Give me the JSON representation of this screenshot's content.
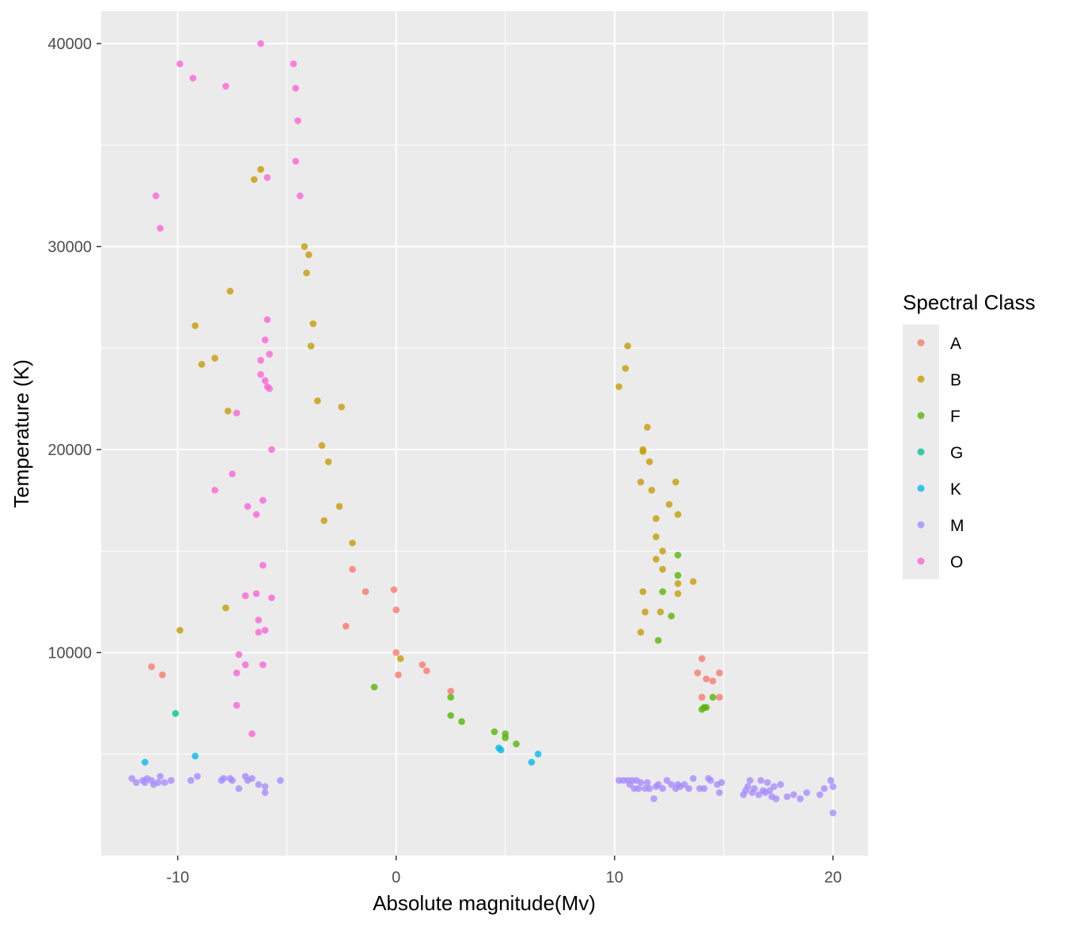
{
  "chart_data": {
    "type": "scatter",
    "xlabel": "Absolute magnitude(Mv)",
    "ylabel": "Temperature (K)",
    "xlim": [
      -13.5,
      21.6
    ],
    "ylim": [
      0,
      41600
    ],
    "x_ticks": [
      -10,
      0,
      10,
      20
    ],
    "x_tick_labels": [
      "-10",
      "0",
      "10",
      "20"
    ],
    "y_ticks": [
      10000,
      20000,
      30000,
      40000
    ],
    "y_tick_labels": [
      "10000",
      "20000",
      "30000",
      "40000"
    ],
    "grid": true,
    "legend": {
      "title": "Spectral Class",
      "placement": "right"
    },
    "series": [
      {
        "name": "A",
        "color": "#F8766D",
        "points": [
          [
            -11.2,
            9300
          ],
          [
            -10.7,
            8900
          ],
          [
            -2.0,
            14100
          ],
          [
            -1.4,
            13000
          ],
          [
            -2.3,
            11300
          ],
          [
            -0.1,
            13100
          ],
          [
            0.0,
            12100
          ],
          [
            0.0,
            10000
          ],
          [
            0.1,
            8900
          ],
          [
            1.2,
            9400
          ],
          [
            1.4,
            9100
          ],
          [
            2.5,
            8100
          ],
          [
            14.0,
            9700
          ],
          [
            13.8,
            9000
          ],
          [
            14.2,
            8700
          ],
          [
            14.5,
            8600
          ],
          [
            14.8,
            9000
          ],
          [
            14.0,
            7800
          ],
          [
            14.8,
            7800
          ]
        ]
      },
      {
        "name": "B",
        "color": "#C49A00",
        "points": [
          [
            -6.5,
            33300
          ],
          [
            -6.2,
            33800
          ],
          [
            -4.2,
            30000
          ],
          [
            -4.0,
            29600
          ],
          [
            -4.1,
            28700
          ],
          [
            -7.6,
            27800
          ],
          [
            -9.2,
            26100
          ],
          [
            -3.8,
            26200
          ],
          [
            -3.9,
            25100
          ],
          [
            -8.3,
            24500
          ],
          [
            -8.9,
            24200
          ],
          [
            -3.6,
            22400
          ],
          [
            -7.7,
            21900
          ],
          [
            -2.5,
            22100
          ],
          [
            -3.4,
            20200
          ],
          [
            -3.1,
            19400
          ],
          [
            -2.6,
            17200
          ],
          [
            -3.3,
            16500
          ],
          [
            -2.0,
            15400
          ],
          [
            -7.8,
            12200
          ],
          [
            -9.9,
            11100
          ],
          [
            0.2,
            9700
          ],
          [
            10.2,
            23100
          ],
          [
            10.6,
            25100
          ],
          [
            10.5,
            24000
          ],
          [
            11.5,
            21100
          ],
          [
            11.3,
            20000
          ],
          [
            11.3,
            19900
          ],
          [
            11.6,
            19400
          ],
          [
            11.2,
            18400
          ],
          [
            12.8,
            18400
          ],
          [
            11.7,
            18000
          ],
          [
            12.5,
            17300
          ],
          [
            12.9,
            16800
          ],
          [
            11.9,
            16600
          ],
          [
            11.9,
            15700
          ],
          [
            12.2,
            15000
          ],
          [
            11.9,
            14600
          ],
          [
            12.2,
            14100
          ],
          [
            13.6,
            13500
          ],
          [
            12.9,
            13400
          ],
          [
            11.3,
            13000
          ],
          [
            12.9,
            12900
          ],
          [
            11.4,
            12000
          ],
          [
            12.1,
            12000
          ],
          [
            11.2,
            11000
          ]
        ]
      },
      {
        "name": "F",
        "color": "#53B400",
        "points": [
          [
            -1.0,
            8300
          ],
          [
            2.5,
            7800
          ],
          [
            2.5,
            6900
          ],
          [
            3.0,
            6600
          ],
          [
            4.5,
            6100
          ],
          [
            5.0,
            6000
          ],
          [
            5.0,
            5800
          ],
          [
            5.5,
            5500
          ],
          [
            12.9,
            14800
          ],
          [
            12.9,
            13800
          ],
          [
            12.2,
            13000
          ],
          [
            12.6,
            11800
          ],
          [
            12.0,
            10600
          ],
          [
            14.5,
            7800
          ],
          [
            14.1,
            7300
          ],
          [
            14.2,
            7300
          ],
          [
            14.0,
            7200
          ]
        ]
      },
      {
        "name": "G",
        "color": "#00C094",
        "points": [
          [
            -10.1,
            7000
          ]
        ]
      },
      {
        "name": "K",
        "color": "#00B6EB",
        "points": [
          [
            -11.5,
            4600
          ],
          [
            -9.2,
            4900
          ],
          [
            4.7,
            5300
          ],
          [
            4.8,
            5200
          ],
          [
            6.2,
            4600
          ],
          [
            6.5,
            5000
          ]
        ]
      },
      {
        "name": "M",
        "color": "#A58AFF",
        "points": [
          [
            -12.1,
            3800
          ],
          [
            -11.9,
            3600
          ],
          [
            -11.6,
            3700
          ],
          [
            -11.5,
            3600
          ],
          [
            -11.4,
            3800
          ],
          [
            -11.2,
            3700
          ],
          [
            -11.1,
            3500
          ],
          [
            -10.9,
            3600
          ],
          [
            -10.8,
            3900
          ],
          [
            -10.6,
            3600
          ],
          [
            -10.3,
            3700
          ],
          [
            -9.4,
            3700
          ],
          [
            -9.1,
            3900
          ],
          [
            -8.0,
            3700
          ],
          [
            -7.9,
            3800
          ],
          [
            -7.6,
            3800
          ],
          [
            -7.5,
            3700
          ],
          [
            -7.2,
            3300
          ],
          [
            -6.9,
            3900
          ],
          [
            -6.8,
            3700
          ],
          [
            -6.6,
            3800
          ],
          [
            -6.3,
            3500
          ],
          [
            -6.0,
            3400
          ],
          [
            -6.0,
            3100
          ],
          [
            -5.3,
            3700
          ],
          [
            10.2,
            3700
          ],
          [
            10.4,
            3700
          ],
          [
            10.6,
            3700
          ],
          [
            10.7,
            3500
          ],
          [
            10.8,
            3700
          ],
          [
            10.9,
            3300
          ],
          [
            11.0,
            3700
          ],
          [
            11.1,
            3300
          ],
          [
            11.2,
            3600
          ],
          [
            11.4,
            3300
          ],
          [
            11.5,
            3600
          ],
          [
            11.6,
            3300
          ],
          [
            11.8,
            2800
          ],
          [
            11.9,
            3400
          ],
          [
            12.0,
            3500
          ],
          [
            12.2,
            3300
          ],
          [
            12.4,
            3700
          ],
          [
            12.6,
            3500
          ],
          [
            12.8,
            3300
          ],
          [
            12.9,
            3500
          ],
          [
            13.0,
            3400
          ],
          [
            13.2,
            3500
          ],
          [
            13.4,
            3300
          ],
          [
            13.6,
            3800
          ],
          [
            13.9,
            3300
          ],
          [
            14.1,
            3300
          ],
          [
            14.3,
            3800
          ],
          [
            14.4,
            3700
          ],
          [
            14.7,
            3500
          ],
          [
            14.8,
            3100
          ],
          [
            14.9,
            3600
          ],
          [
            15.9,
            3000
          ],
          [
            16.0,
            3200
          ],
          [
            16.1,
            3400
          ],
          [
            16.2,
            3700
          ],
          [
            16.3,
            3100
          ],
          [
            16.4,
            3300
          ],
          [
            16.6,
            3000
          ],
          [
            16.7,
            3700
          ],
          [
            16.8,
            3200
          ],
          [
            16.9,
            3100
          ],
          [
            17.0,
            3600
          ],
          [
            17.1,
            3200
          ],
          [
            17.2,
            2900
          ],
          [
            17.3,
            3400
          ],
          [
            17.4,
            2800
          ],
          [
            17.6,
            3500
          ],
          [
            17.9,
            2900
          ],
          [
            18.2,
            3000
          ],
          [
            18.5,
            2800
          ],
          [
            18.8,
            3100
          ],
          [
            19.4,
            3000
          ],
          [
            19.6,
            3300
          ],
          [
            19.9,
            3700
          ],
          [
            20.0,
            3400
          ],
          [
            20.0,
            2100
          ]
        ]
      },
      {
        "name": "O",
        "color": "#FB61D7",
        "points": [
          [
            -6.2,
            40000
          ],
          [
            -9.9,
            39000
          ],
          [
            -4.7,
            39000
          ],
          [
            -9.3,
            38300
          ],
          [
            -7.8,
            37900
          ],
          [
            -4.6,
            37800
          ],
          [
            -4.5,
            36200
          ],
          [
            -4.6,
            34200
          ],
          [
            -5.9,
            33400
          ],
          [
            -4.4,
            32500
          ],
          [
            -11.0,
            32500
          ],
          [
            -10.8,
            30900
          ],
          [
            -5.9,
            26400
          ],
          [
            -6.0,
            25400
          ],
          [
            -5.8,
            24700
          ],
          [
            -6.2,
            24400
          ],
          [
            -6.2,
            23700
          ],
          [
            -6.0,
            23400
          ],
          [
            -5.9,
            23100
          ],
          [
            -5.8,
            23000
          ],
          [
            -7.3,
            21800
          ],
          [
            -5.7,
            20000
          ],
          [
            -7.5,
            18800
          ],
          [
            -8.3,
            18000
          ],
          [
            -6.1,
            17500
          ],
          [
            -6.8,
            17200
          ],
          [
            -6.4,
            16800
          ],
          [
            -6.1,
            14300
          ],
          [
            -6.4,
            12900
          ],
          [
            -6.9,
            12800
          ],
          [
            -5.7,
            12700
          ],
          [
            -6.3,
            11600
          ],
          [
            -6.0,
            11100
          ],
          [
            -6.3,
            11000
          ],
          [
            -7.2,
            9900
          ],
          [
            -6.9,
            9400
          ],
          [
            -6.1,
            9400
          ],
          [
            -7.3,
            9000
          ],
          [
            -7.3,
            7400
          ],
          [
            -6.6,
            6000
          ]
        ]
      }
    ]
  }
}
